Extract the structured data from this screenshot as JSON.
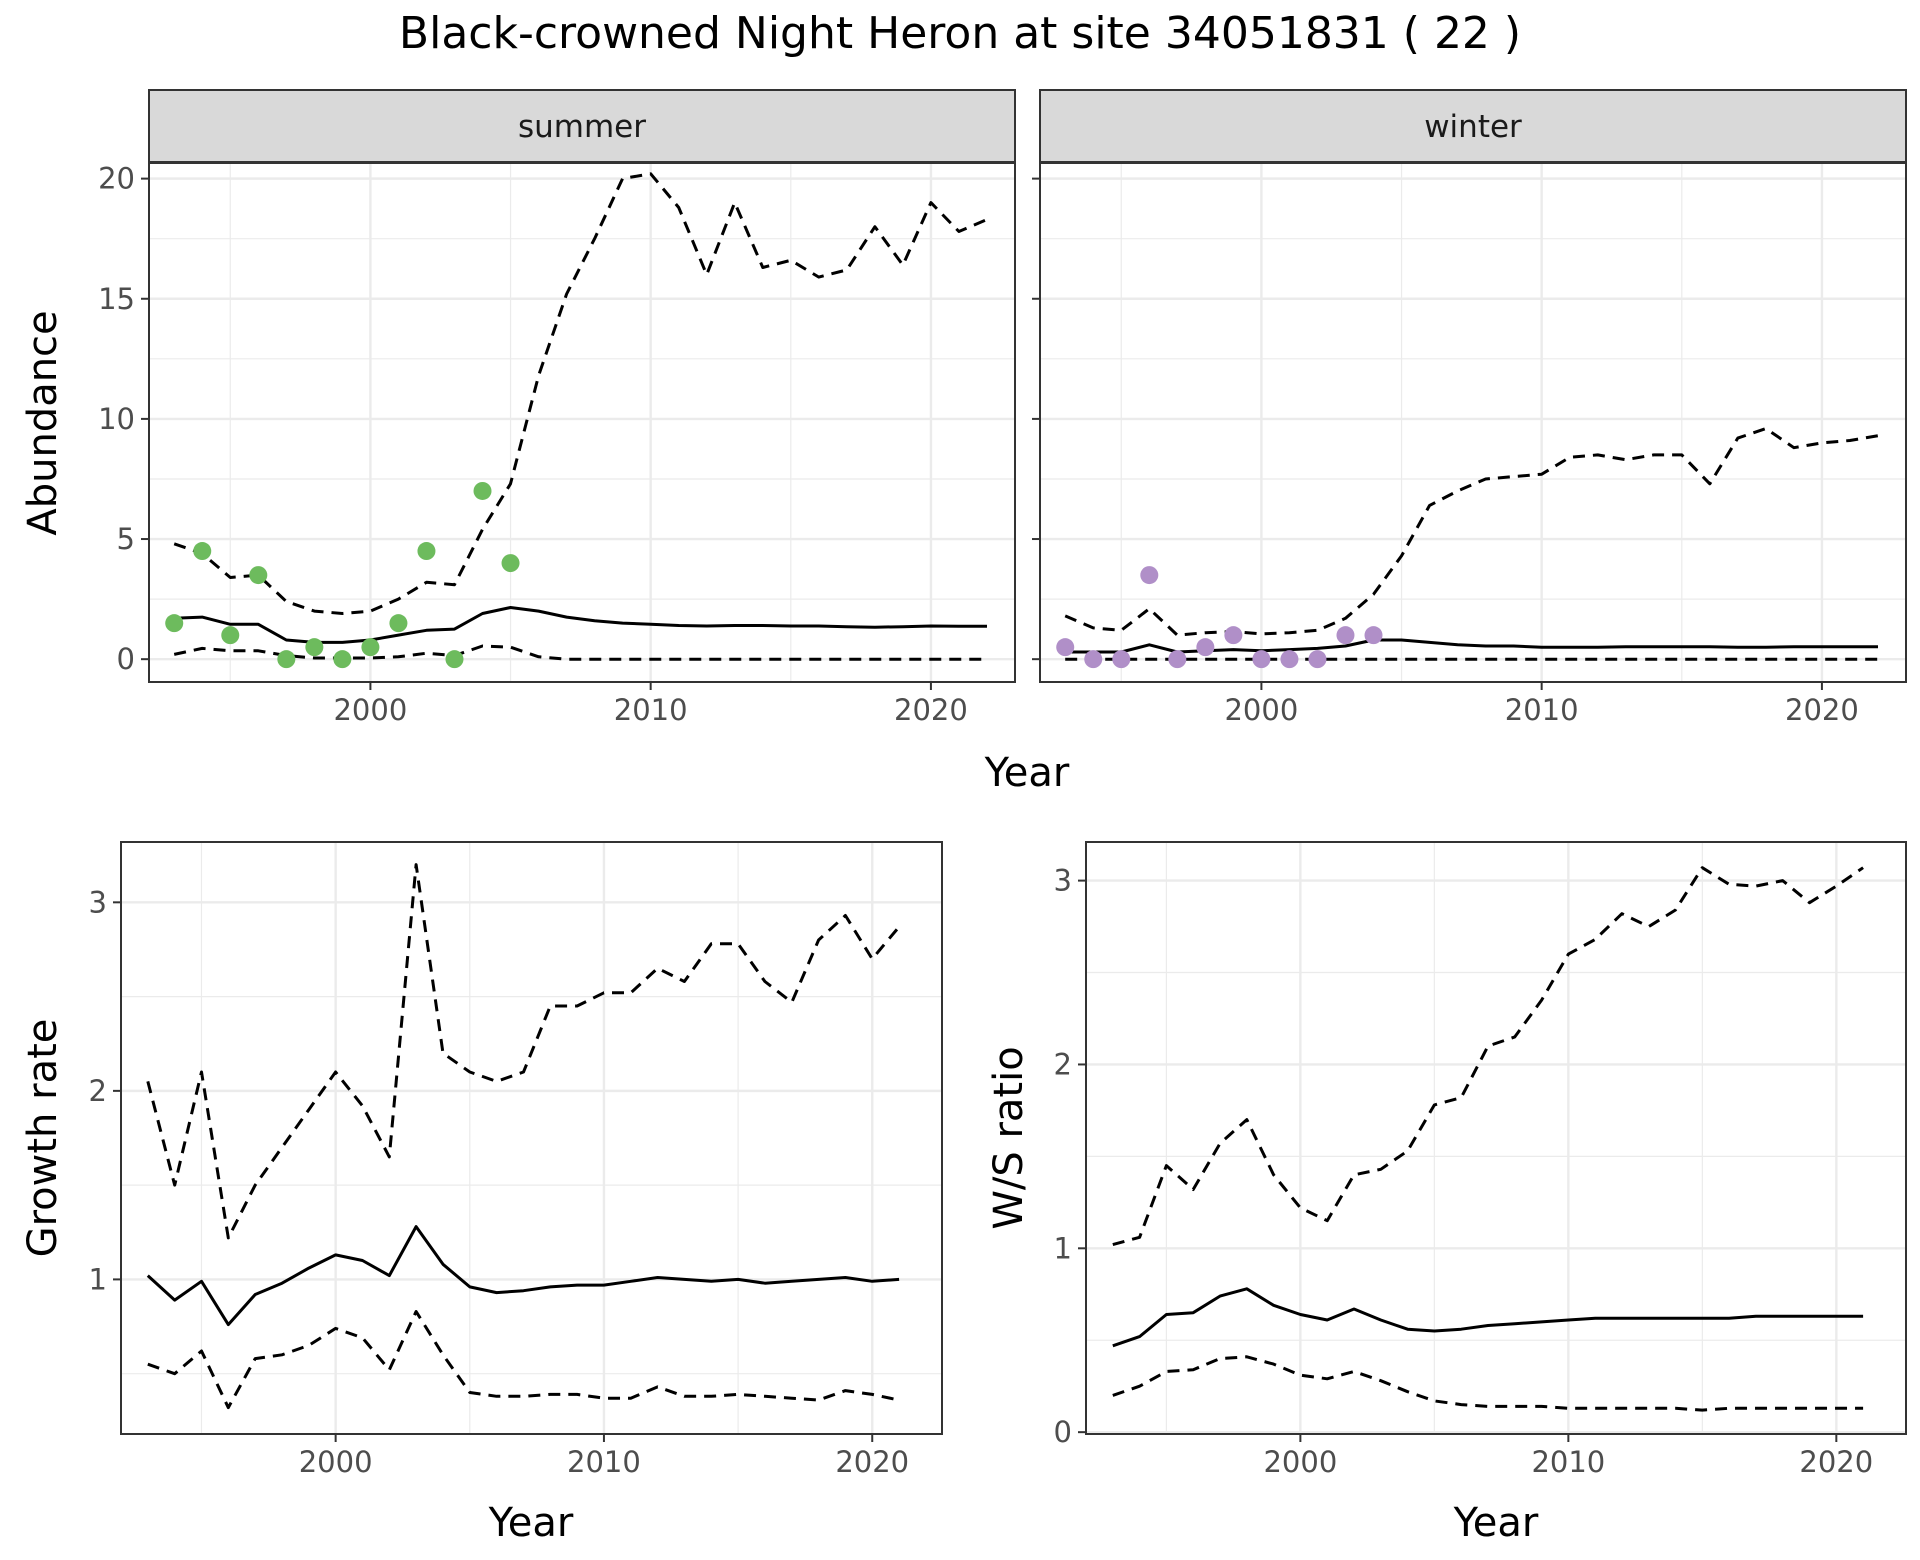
{
  "title": "Black-crowned Night Heron at site 34051831 ( 22 )",
  "colors": {
    "summer_points": "#6dbb5d",
    "winter_points": "#b08fc8",
    "strip_fill": "#d9d9d9",
    "grid": "#ebebeb",
    "line": "#000000"
  },
  "chart_data": [
    {
      "type": "line",
      "panel": "summer",
      "strip_label": "summer",
      "xlabel": "Year",
      "ylabel": "Abundance",
      "xlim": [
        1992.1,
        2023.0
      ],
      "ylim": [
        -0.95,
        20.65
      ],
      "xticks": [
        2000,
        2010,
        2020
      ],
      "yticks": [
        0,
        5,
        10,
        15,
        20
      ],
      "x": [
        1993,
        1994,
        1995,
        1996,
        1997,
        1998,
        1999,
        2000,
        2001,
        2002,
        2003,
        2004,
        2005,
        2006,
        2007,
        2008,
        2009,
        2010,
        2011,
        2012,
        2013,
        2014,
        2015,
        2016,
        2017,
        2018,
        2019,
        2020,
        2021,
        2022
      ],
      "series": [
        {
          "style": "solid",
          "values": [
            1.7,
            1.75,
            1.45,
            1.45,
            0.8,
            0.7,
            0.7,
            0.8,
            1.0,
            1.2,
            1.25,
            1.9,
            2.15,
            2.0,
            1.75,
            1.6,
            1.5,
            1.45,
            1.4,
            1.38,
            1.4,
            1.4,
            1.38,
            1.38,
            1.35,
            1.33,
            1.35,
            1.38,
            1.37,
            1.37
          ]
        },
        {
          "style": "dashed",
          "values": [
            4.8,
            4.4,
            3.4,
            3.5,
            2.4,
            2.0,
            1.9,
            2.0,
            2.5,
            3.2,
            3.1,
            5.4,
            7.3,
            11.8,
            15.2,
            17.5,
            20.0,
            20.2,
            18.8,
            16.0,
            19.0,
            16.3,
            16.6,
            15.9,
            16.2,
            18.0,
            16.4,
            19.0,
            17.8,
            18.3
          ]
        },
        {
          "style": "dashed",
          "values": [
            0.2,
            0.45,
            0.35,
            0.35,
            0.15,
            0.05,
            0.05,
            0.05,
            0.1,
            0.25,
            0.15,
            0.55,
            0.5,
            0.1,
            0,
            0,
            0,
            0,
            0,
            0,
            0,
            0,
            0,
            0,
            0,
            0,
            0,
            0,
            0,
            0
          ]
        }
      ],
      "points": {
        "x": [
          1993,
          1994,
          1995,
          1996,
          1997,
          1998,
          1999,
          2000,
          2001,
          2002,
          2003,
          2004,
          2005
        ],
        "y": [
          1.5,
          4.5,
          1.0,
          3.5,
          0,
          0.5,
          0,
          0.5,
          1.5,
          4.5,
          0,
          7.0,
          4.0
        ]
      }
    },
    {
      "type": "line",
      "panel": "winter",
      "strip_label": "winter",
      "xlabel": "Year",
      "ylabel": "Abundance",
      "xlim": [
        1992.1,
        2023.0
      ],
      "ylim": [
        -0.95,
        20.65
      ],
      "xticks": [
        2000,
        2010,
        2020
      ],
      "yticks": [
        0,
        5,
        10,
        15,
        20
      ],
      "x": [
        1993,
        1994,
        1995,
        1996,
        1997,
        1998,
        1999,
        2000,
        2001,
        2002,
        2003,
        2004,
        2005,
        2006,
        2007,
        2008,
        2009,
        2010,
        2011,
        2012,
        2013,
        2014,
        2015,
        2016,
        2017,
        2018,
        2019,
        2020,
        2021,
        2022
      ],
      "series": [
        {
          "style": "solid",
          "values": [
            0.3,
            0.3,
            0.3,
            0.6,
            0.3,
            0.35,
            0.4,
            0.35,
            0.4,
            0.45,
            0.55,
            0.8,
            0.8,
            0.7,
            0.6,
            0.55,
            0.55,
            0.5,
            0.5,
            0.5,
            0.52,
            0.52,
            0.52,
            0.52,
            0.5,
            0.5,
            0.52,
            0.52,
            0.52,
            0.52
          ]
        },
        {
          "style": "dashed",
          "values": [
            1.8,
            1.3,
            1.2,
            2.1,
            1.0,
            1.1,
            1.15,
            1.05,
            1.1,
            1.2,
            1.7,
            2.7,
            4.3,
            6.4,
            7.0,
            7.5,
            7.6,
            7.7,
            8.4,
            8.5,
            8.3,
            8.5,
            8.5,
            7.3,
            9.2,
            9.6,
            8.8,
            9.0,
            9.1,
            9.3
          ]
        },
        {
          "style": "dashed",
          "values": [
            0,
            0,
            0,
            0,
            0,
            0,
            0,
            0,
            0,
            0,
            0,
            0,
            0,
            0,
            0,
            0,
            0,
            0,
            0,
            0,
            0,
            0,
            0,
            0,
            0,
            0,
            0,
            0,
            0,
            0
          ]
        }
      ],
      "points": {
        "x": [
          1993,
          1994,
          1995,
          1996,
          1997,
          1998,
          1999,
          2000,
          2001,
          2002,
          2003,
          2004
        ],
        "y": [
          0.5,
          0,
          0,
          3.5,
          0,
          0.5,
          1.0,
          0,
          0,
          0,
          1.0,
          1.0
        ]
      }
    },
    {
      "type": "line",
      "panel": "growth",
      "xlabel": "Year",
      "ylabel": "Growth rate",
      "xlim": [
        1992.0,
        2022.6
      ],
      "ylim": [
        0.18,
        3.32
      ],
      "xticks": [
        2000,
        2010,
        2020
      ],
      "yticks": [
        1,
        2,
        3
      ],
      "x": [
        1993,
        1994,
        1995,
        1996,
        1997,
        1998,
        1999,
        2000,
        2001,
        2002,
        2003,
        2004,
        2005,
        2006,
        2007,
        2008,
        2009,
        2010,
        2011,
        2012,
        2013,
        2014,
        2015,
        2016,
        2017,
        2018,
        2019,
        2020,
        2021
      ],
      "series": [
        {
          "style": "solid",
          "values": [
            1.02,
            0.89,
            0.99,
            0.76,
            0.92,
            0.98,
            1.06,
            1.13,
            1.1,
            1.02,
            1.28,
            1.08,
            0.96,
            0.93,
            0.94,
            0.96,
            0.97,
            0.97,
            0.99,
            1.01,
            1.0,
            0.99,
            1.0,
            0.98,
            0.99,
            1.0,
            1.01,
            0.99,
            1.0
          ]
        },
        {
          "style": "dashed",
          "values": [
            2.05,
            1.5,
            2.1,
            1.22,
            1.5,
            1.7,
            1.9,
            2.1,
            1.92,
            1.65,
            3.2,
            2.2,
            2.1,
            2.05,
            2.1,
            2.45,
            2.45,
            2.52,
            2.52,
            2.65,
            2.58,
            2.78,
            2.78,
            2.58,
            2.47,
            2.8,
            2.93,
            2.7,
            2.87
          ]
        },
        {
          "style": "dashed",
          "values": [
            0.55,
            0.5,
            0.62,
            0.32,
            0.58,
            0.6,
            0.65,
            0.74,
            0.69,
            0.52,
            0.83,
            0.6,
            0.4,
            0.38,
            0.38,
            0.39,
            0.39,
            0.37,
            0.37,
            0.43,
            0.38,
            0.38,
            0.39,
            0.38,
            0.37,
            0.36,
            0.41,
            0.39,
            0.36
          ]
        }
      ]
    },
    {
      "type": "line",
      "panel": "ratio",
      "xlabel": "Year",
      "ylabel": "W/S ratio",
      "xlim": [
        1992.0,
        2022.6
      ],
      "ylim": [
        -0.01,
        3.21
      ],
      "xticks": [
        2000,
        2010,
        2020
      ],
      "yticks": [
        0,
        1,
        2,
        3
      ],
      "x": [
        1993,
        1994,
        1995,
        1996,
        1997,
        1998,
        1999,
        2000,
        2001,
        2002,
        2003,
        2004,
        2005,
        2006,
        2007,
        2008,
        2009,
        2010,
        2011,
        2012,
        2013,
        2014,
        2015,
        2016,
        2017,
        2018,
        2019,
        2020,
        2021
      ],
      "series": [
        {
          "style": "solid",
          "values": [
            0.47,
            0.52,
            0.64,
            0.65,
            0.74,
            0.78,
            0.69,
            0.64,
            0.61,
            0.67,
            0.61,
            0.56,
            0.55,
            0.56,
            0.58,
            0.59,
            0.6,
            0.61,
            0.62,
            0.62,
            0.62,
            0.62,
            0.62,
            0.62,
            0.63,
            0.63,
            0.63,
            0.63,
            0.63
          ]
        },
        {
          "style": "dashed",
          "values": [
            1.02,
            1.06,
            1.45,
            1.32,
            1.57,
            1.7,
            1.4,
            1.22,
            1.15,
            1.4,
            1.43,
            1.53,
            1.78,
            1.82,
            2.1,
            2.15,
            2.35,
            2.6,
            2.68,
            2.82,
            2.75,
            2.84,
            3.07,
            2.98,
            2.97,
            3.0,
            2.88,
            2.97,
            3.07
          ]
        },
        {
          "style": "dashed",
          "values": [
            0.2,
            0.25,
            0.33,
            0.34,
            0.4,
            0.41,
            0.37,
            0.31,
            0.29,
            0.33,
            0.28,
            0.22,
            0.17,
            0.15,
            0.14,
            0.14,
            0.14,
            0.13,
            0.13,
            0.13,
            0.13,
            0.13,
            0.12,
            0.13,
            0.13,
            0.13,
            0.13,
            0.13,
            0.13
          ]
        }
      ]
    }
  ]
}
